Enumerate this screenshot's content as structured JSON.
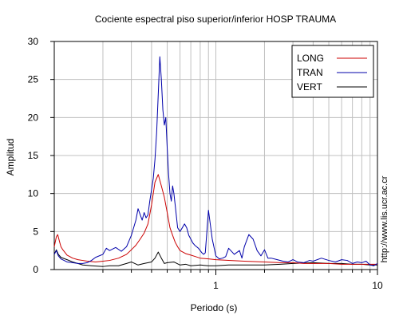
{
  "chart_data": {
    "type": "line",
    "title": "Cociente espectral piso superior/inferior  HOSP TRAUMA",
    "xlabel": "Periodo (s)",
    "ylabel": "Amplitud",
    "xscale": "log",
    "xlim": [
      0.1,
      10
    ],
    "ylim": [
      0,
      30
    ],
    "grid": true,
    "legend_position": "top-right",
    "yticks": [
      0,
      5,
      10,
      15,
      20,
      25,
      30
    ],
    "ytick_labels": [
      "0",
      "5",
      "10",
      "15",
      "20",
      "25",
      "30"
    ],
    "xticks": [
      1,
      10
    ],
    "xtick_labels": [
      "1",
      "10"
    ],
    "side_text": "http://www.lis.ucr.ac.cr",
    "series": [
      {
        "name": "LONG",
        "color": "#cc0000",
        "x": [
          0.1,
          0.103,
          0.105,
          0.108,
          0.11,
          0.113,
          0.117,
          0.12,
          0.125,
          0.13,
          0.14,
          0.15,
          0.16,
          0.18,
          0.2,
          0.22,
          0.25,
          0.28,
          0.3,
          0.32,
          0.34,
          0.36,
          0.38,
          0.4,
          0.42,
          0.44,
          0.46,
          0.48,
          0.5,
          0.52,
          0.54,
          0.56,
          0.58,
          0.6,
          0.65,
          0.7,
          0.75,
          0.8,
          0.9,
          1.0,
          1.2,
          1.5,
          2.0,
          2.5,
          3.0,
          3.5,
          4.0,
          5.0,
          6.0,
          7.0,
          8.0,
          9.0,
          10.0
        ],
        "y": [
          3.0,
          4.3,
          4.6,
          3.6,
          3.0,
          2.6,
          2.2,
          1.9,
          1.7,
          1.5,
          1.3,
          1.2,
          1.1,
          1.0,
          1.1,
          1.2,
          1.5,
          2.0,
          2.6,
          3.2,
          4.0,
          4.8,
          6.0,
          8.5,
          11.5,
          12.5,
          11.0,
          9.5,
          7.5,
          5.5,
          4.5,
          3.6,
          3.0,
          2.5,
          2.1,
          1.9,
          1.7,
          1.5,
          1.4,
          1.3,
          1.2,
          1.1,
          1.0,
          0.9,
          0.9,
          0.8,
          0.8,
          0.8,
          0.7,
          0.7,
          0.7,
          0.7,
          0.7
        ]
      },
      {
        "name": "TRAN",
        "color": "#0000aa",
        "x": [
          0.1,
          0.103,
          0.106,
          0.11,
          0.115,
          0.12,
          0.13,
          0.14,
          0.15,
          0.16,
          0.17,
          0.18,
          0.2,
          0.21,
          0.22,
          0.24,
          0.26,
          0.28,
          0.3,
          0.32,
          0.33,
          0.35,
          0.36,
          0.37,
          0.38,
          0.39,
          0.4,
          0.41,
          0.42,
          0.43,
          0.44,
          0.45,
          0.46,
          0.47,
          0.48,
          0.49,
          0.5,
          0.51,
          0.52,
          0.53,
          0.54,
          0.55,
          0.56,
          0.57,
          0.58,
          0.6,
          0.62,
          0.64,
          0.66,
          0.68,
          0.7,
          0.72,
          0.74,
          0.76,
          0.78,
          0.8,
          0.82,
          0.84,
          0.86,
          0.88,
          0.9,
          0.95,
          1.0,
          1.05,
          1.1,
          1.15,
          1.2,
          1.3,
          1.4,
          1.45,
          1.5,
          1.6,
          1.7,
          1.8,
          1.9,
          2.0,
          2.1,
          2.2,
          2.4,
          2.6,
          2.8,
          3.0,
          3.2,
          3.5,
          3.8,
          4.0,
          4.5,
          5.0,
          5.5,
          6.0,
          6.5,
          7.0,
          7.5,
          8.0,
          8.5,
          9.0,
          9.5,
          10.0
        ],
        "y": [
          2.0,
          2.5,
          1.8,
          1.4,
          1.2,
          1.0,
          0.9,
          0.8,
          0.8,
          0.9,
          1.2,
          1.6,
          2.0,
          2.8,
          2.5,
          2.9,
          2.4,
          3.0,
          4.5,
          6.5,
          8.0,
          6.5,
          7.5,
          6.8,
          7.2,
          9.0,
          10.5,
          12.0,
          14.5,
          18.0,
          23.0,
          28.0,
          25.0,
          21.0,
          19.0,
          20.0,
          16.0,
          12.5,
          10.0,
          9.0,
          11.0,
          10.0,
          8.5,
          7.0,
          5.5,
          5.0,
          5.5,
          6.0,
          5.5,
          4.5,
          4.0,
          3.5,
          3.2,
          3.0,
          2.8,
          2.5,
          2.2,
          2.0,
          2.2,
          5.0,
          7.8,
          4.0,
          1.8,
          1.4,
          1.5,
          1.7,
          2.8,
          2.0,
          2.5,
          1.5,
          3.0,
          4.6,
          4.0,
          2.5,
          1.8,
          2.6,
          1.5,
          1.5,
          1.3,
          1.1,
          1.0,
          1.3,
          1.0,
          0.9,
          1.2,
          1.1,
          1.5,
          1.2,
          1.0,
          1.3,
          1.2,
          0.8,
          1.0,
          0.9,
          1.1,
          0.6,
          0.5,
          0.8
        ]
      },
      {
        "name": "VERT",
        "color": "#000000",
        "x": [
          0.1,
          0.103,
          0.106,
          0.11,
          0.12,
          0.13,
          0.14,
          0.15,
          0.17,
          0.2,
          0.22,
          0.25,
          0.28,
          0.3,
          0.33,
          0.36,
          0.4,
          0.42,
          0.44,
          0.46,
          0.48,
          0.5,
          0.55,
          0.6,
          0.65,
          0.7,
          0.8,
          0.9,
          1.0,
          1.2,
          1.5,
          2.0,
          2.5,
          3.0,
          4.0,
          5.0,
          6.0,
          7.0,
          8.0,
          9.0,
          10.0
        ],
        "y": [
          2.0,
          2.6,
          2.0,
          1.6,
          1.3,
          1.0,
          0.8,
          0.6,
          0.5,
          0.4,
          0.5,
          0.5,
          0.8,
          1.0,
          0.6,
          0.8,
          1.0,
          1.5,
          2.3,
          1.5,
          0.8,
          0.9,
          1.0,
          0.6,
          0.7,
          0.5,
          0.6,
          0.5,
          0.5,
          0.6,
          0.6,
          0.6,
          0.7,
          0.8,
          0.9,
          0.8,
          0.8,
          0.7,
          0.7,
          0.6,
          0.6
        ]
      }
    ]
  }
}
